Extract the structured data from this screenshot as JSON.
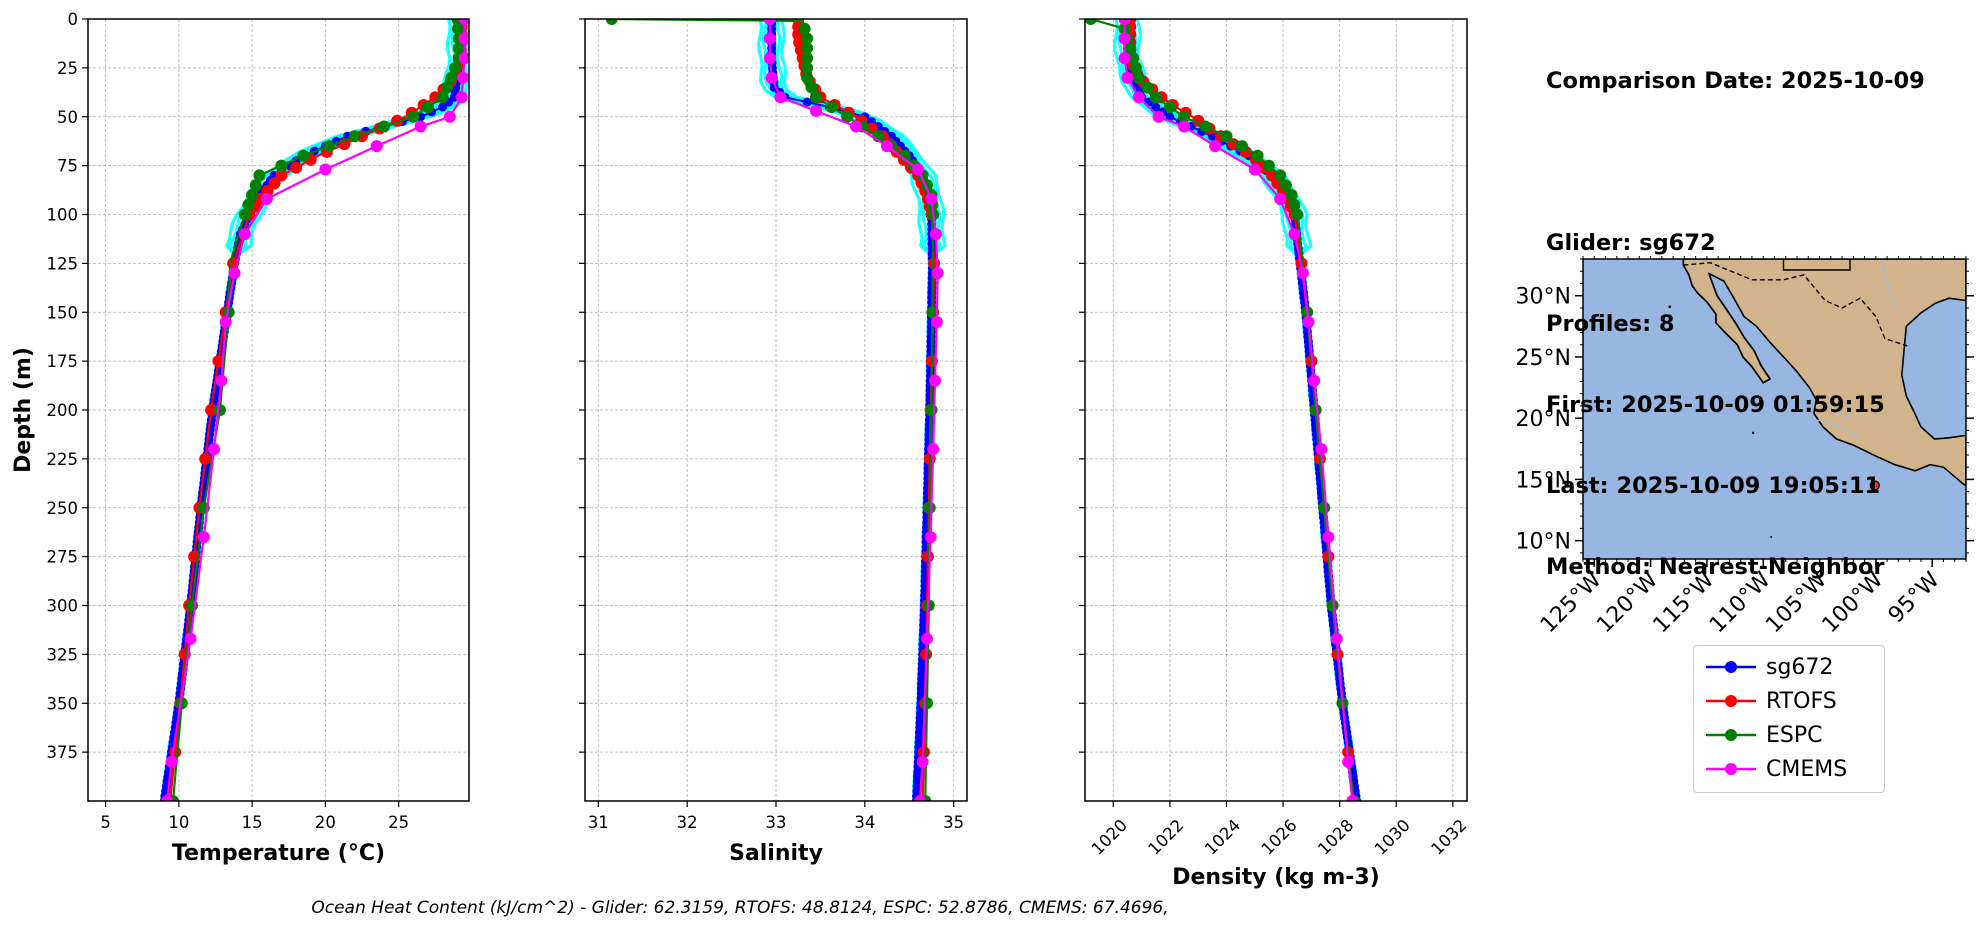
{
  "chart_data": [
    {
      "type": "line",
      "xlabel": "Temperature (°C)",
      "ylabel": "Depth (m)",
      "xlim": [
        3.8,
        29.8
      ],
      "ylim": [
        400,
        0
      ],
      "xticks": [
        5,
        10,
        15,
        20,
        25
      ],
      "yticks": [
        0,
        25,
        50,
        75,
        100,
        125,
        150,
        175,
        200,
        225,
        250,
        275,
        300,
        325,
        350,
        375
      ],
      "grid": true,
      "series": [
        {
          "name": "sg672",
          "color": "#0000ff",
          "depth": [
            0,
            20,
            40,
            45,
            50,
            55,
            60,
            70,
            80,
            90,
            100,
            110,
            125,
            150,
            175,
            200,
            250,
            300,
            350,
            400
          ],
          "values": [
            29.2,
            29.2,
            28.8,
            28,
            26.5,
            24,
            21.5,
            18.5,
            16.5,
            15.5,
            14.8,
            14.2,
            13.8,
            13.3,
            12.8,
            12.3,
            11.5,
            10.8,
            10.0,
            9.0
          ]
        },
        {
          "name": "RTOFS",
          "color": "#ff0000",
          "depth": [
            0,
            10,
            20,
            30,
            35,
            40,
            45,
            50,
            60,
            70,
            80,
            90,
            100,
            125,
            150,
            175,
            200,
            250,
            300,
            350,
            400
          ],
          "values": [
            29.3,
            29.3,
            29.2,
            28.8,
            28.2,
            27.5,
            26.5,
            25.5,
            22.5,
            19.5,
            17.0,
            15.8,
            14.8,
            13.7,
            13.2,
            12.7,
            12.2,
            11.4,
            10.7,
            10.1,
            9.4
          ]
        },
        {
          "name": "ESPC",
          "color": "#008000",
          "depth": [
            0,
            10,
            20,
            30,
            40,
            50,
            60,
            70,
            80,
            90,
            100,
            125,
            150,
            200,
            250,
            300,
            350,
            400
          ],
          "values": [
            29.0,
            29.1,
            29.1,
            28.6,
            28.0,
            26.0,
            22.0,
            18.5,
            15.5,
            15.0,
            14.5,
            13.5,
            13.4,
            12.8,
            11.7,
            10.9,
            10.2,
            9.6
          ]
        },
        {
          "name": "CMEMS",
          "color": "#ff00ff",
          "depth": [
            0,
            10,
            20,
            30,
            40,
            50,
            55,
            65,
            77,
            92,
            110,
            130,
            155,
            185,
            220,
            265,
            317,
            380,
            400
          ],
          "values": [
            29.5,
            29.5,
            29.5,
            29.4,
            29.3,
            28.5,
            26.5,
            23.5,
            20.0,
            16.0,
            14.5,
            13.8,
            13.2,
            12.9,
            12.4,
            11.7,
            10.8,
            9.5,
            9.2
          ]
        }
      ]
    },
    {
      "type": "line",
      "xlabel": "Salinity",
      "xlim": [
        30.85,
        35.15
      ],
      "ylim": [
        400,
        0
      ],
      "xticks": [
        31,
        32,
        33,
        34,
        35
      ],
      "grid": true,
      "series": [
        {
          "name": "sg672",
          "color": "#0000ff",
          "depth": [
            0,
            5,
            20,
            35,
            40,
            45,
            50,
            60,
            70,
            80,
            90,
            100,
            125,
            150,
            200,
            250,
            300,
            350,
            400
          ],
          "values": [
            32.95,
            32.95,
            32.95,
            32.98,
            33.1,
            33.6,
            34.0,
            34.3,
            34.5,
            34.65,
            34.72,
            34.75,
            34.76,
            34.75,
            34.73,
            34.7,
            34.67,
            34.63,
            34.58
          ]
        },
        {
          "name": "RTOFS",
          "color": "#ff0000",
          "depth": [
            0,
            10,
            20,
            30,
            40,
            45,
            50,
            55,
            60,
            70,
            80,
            90,
            100,
            125,
            150,
            200,
            250,
            300,
            350,
            400
          ],
          "values": [
            33.25,
            33.25,
            33.3,
            33.35,
            33.5,
            33.7,
            33.9,
            34.05,
            34.2,
            34.4,
            34.6,
            34.7,
            34.75,
            34.78,
            34.77,
            34.74,
            34.72,
            34.7,
            34.68,
            34.65
          ]
        },
        {
          "name": "ESPC",
          "color": "#008000",
          "depth": [
            0,
            1,
            10,
            20,
            30,
            40,
            50,
            60,
            70,
            80,
            90,
            100,
            150,
            200,
            250,
            300,
            350,
            400
          ],
          "values": [
            31.15,
            33.3,
            33.35,
            33.35,
            33.35,
            33.45,
            33.8,
            34.15,
            34.45,
            34.65,
            34.75,
            34.77,
            34.76,
            34.75,
            34.73,
            34.72,
            34.7,
            34.68
          ]
        },
        {
          "name": "CMEMS",
          "color": "#ff00ff",
          "depth": [
            0,
            10,
            20,
            30,
            40,
            47,
            55,
            65,
            77,
            92,
            110,
            130,
            155,
            185,
            220,
            265,
            317,
            380,
            400
          ],
          "values": [
            32.93,
            32.93,
            32.93,
            32.95,
            33.05,
            33.45,
            33.9,
            34.25,
            34.6,
            34.75,
            34.8,
            34.82,
            34.81,
            34.79,
            34.77,
            34.74,
            34.7,
            34.65,
            34.62
          ]
        }
      ]
    },
    {
      "type": "line",
      "xlabel": "Density (kg m-3)",
      "xlim": [
        1019.0,
        1032.5
      ],
      "ylim": [
        400,
        0
      ],
      "xticks": [
        1020,
        1022,
        1024,
        1026,
        1028,
        1030,
        1032
      ],
      "grid": true,
      "series": [
        {
          "name": "sg672",
          "color": "#0000ff",
          "depth": [
            0,
            20,
            30,
            40,
            50,
            60,
            70,
            80,
            90,
            100,
            125,
            150,
            200,
            250,
            300,
            350,
            400
          ],
          "values": [
            1020.5,
            1020.5,
            1020.7,
            1021.0,
            1022.0,
            1023.5,
            1024.8,
            1025.6,
            1026.1,
            1026.4,
            1026.6,
            1026.8,
            1027.1,
            1027.4,
            1027.7,
            1028.1,
            1028.6
          ]
        },
        {
          "name": "RTOFS",
          "color": "#ff0000",
          "depth": [
            0,
            20,
            30,
            35,
            40,
            45,
            50,
            60,
            70,
            80,
            90,
            100,
            125,
            150,
            200,
            250,
            300,
            350,
            400
          ],
          "values": [
            1020.6,
            1020.6,
            1020.9,
            1021.3,
            1021.7,
            1022.2,
            1022.8,
            1023.8,
            1024.9,
            1025.6,
            1026.1,
            1026.4,
            1026.65,
            1026.85,
            1027.15,
            1027.45,
            1027.75,
            1028.1,
            1028.5
          ]
        },
        {
          "name": "ESPC",
          "color": "#008000",
          "depth": [
            0,
            5,
            15,
            30,
            40,
            50,
            60,
            70,
            80,
            90,
            100,
            125,
            150,
            200,
            250,
            300,
            350,
            400
          ],
          "values": [
            1019.2,
            1020.4,
            1020.6,
            1020.9,
            1021.5,
            1022.5,
            1024.0,
            1025.1,
            1025.9,
            1026.3,
            1026.5,
            1026.7,
            1026.85,
            1027.15,
            1027.45,
            1027.75,
            1028.1,
            1028.5
          ]
        },
        {
          "name": "CMEMS",
          "color": "#ff00ff",
          "depth": [
            0,
            10,
            20,
            30,
            40,
            50,
            55,
            65,
            77,
            92,
            110,
            130,
            155,
            185,
            220,
            265,
            317,
            380,
            400
          ],
          "values": [
            1020.4,
            1020.4,
            1020.4,
            1020.5,
            1020.9,
            1021.6,
            1022.5,
            1023.6,
            1025.0,
            1025.9,
            1026.4,
            1026.7,
            1026.9,
            1027.1,
            1027.35,
            1027.6,
            1027.9,
            1028.3,
            1028.45
          ]
        }
      ]
    }
  ],
  "info": {
    "comparison_date": "Comparison Date: 2025-10-09",
    "glider": "Glider: sg672",
    "profiles": "Profiles: 8",
    "first": "First: 2025-10-09 01:59:15",
    "last": "Last: 2025-10-09 19:05:11",
    "method": "Method: Nearest-Neighbor"
  },
  "map": {
    "lon_range": [
      -126,
      -92
    ],
    "lat_range": [
      8.5,
      33
    ],
    "lon_ticks": [
      "125°W",
      "120°W",
      "115°W",
      "110°W",
      "105°W",
      "100°W",
      "95°W"
    ],
    "lat_ticks": [
      "30°N",
      "25°N",
      "20°N",
      "15°N",
      "10°N"
    ],
    "ocean_color": "#97b6e1",
    "land_color": "#d2b48c",
    "glider_position": {
      "lon": -100.1,
      "lat": 14.5
    },
    "marker_color": "#e8352e"
  },
  "legend": [
    {
      "label": "sg672",
      "color": "#0000ff"
    },
    {
      "label": "RTOFS",
      "color": "#ff0000"
    },
    {
      "label": "ESPC",
      "color": "#008000"
    },
    {
      "label": "CMEMS",
      "color": "#ff00ff"
    }
  ],
  "footer": "Ocean Heat Content (kJ/cm^2) - Glider: 62.3159,  RTOFS: 48.8124,  ESPC: 52.8786,  CMEMS: 67.4696,"
}
